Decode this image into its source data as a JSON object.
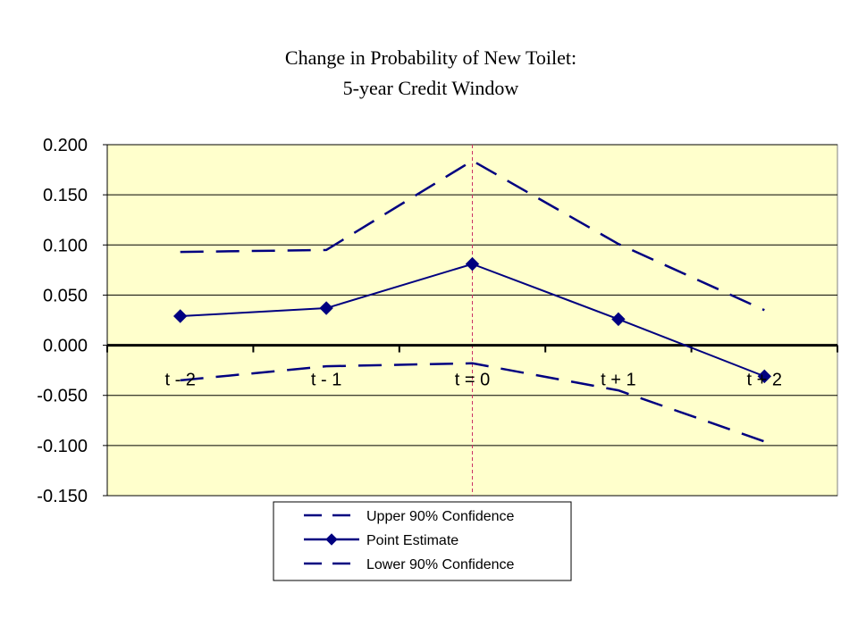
{
  "chart_data": {
    "type": "line",
    "title": [
      "Change in Probability of New Toilet:",
      "5-year Credit Window"
    ],
    "categories": [
      "t - 2",
      "t - 1",
      "t = 0",
      "t + 1",
      "t + 2"
    ],
    "ylim": [
      -0.15,
      0.2
    ],
    "yticks": [
      "0.200",
      "0.150",
      "0.100",
      "0.050",
      "0.000",
      "-0.050",
      "-0.100",
      "-0.150"
    ],
    "grid": true,
    "plot_background": "#ffffcc",
    "reference_line": {
      "category": "t = 0",
      "color": "#cc3366"
    },
    "legend_position": "bottom",
    "series": [
      {
        "name": "Upper 90% Confidence",
        "values": [
          0.093,
          0.095,
          0.184,
          0.101,
          0.035
        ],
        "style": "dashed",
        "marker": "none",
        "color": "#000080"
      },
      {
        "name": "Point Estimate",
        "values": [
          0.029,
          0.037,
          0.081,
          0.026,
          -0.031
        ],
        "style": "solid",
        "marker": "diamond",
        "color": "#000080"
      },
      {
        "name": "Lower 90% Confidence",
        "values": [
          -0.035,
          -0.021,
          -0.018,
          -0.045,
          -0.096
        ],
        "style": "dashed",
        "marker": "none",
        "color": "#000080"
      }
    ]
  }
}
